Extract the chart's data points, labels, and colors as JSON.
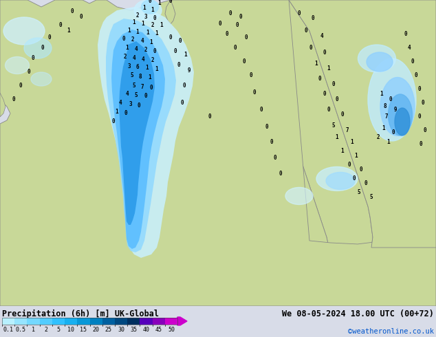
{
  "title_left": "Precipitation (6h) [m] UK-Global",
  "title_right": "We 08-05-2024 18.00 UTC (00+72)",
  "credit": "©weatheronline.co.uk",
  "colorbar_labels": [
    "0.1",
    "0.5",
    "1",
    "2",
    "5",
    "10",
    "15",
    "20",
    "25",
    "30",
    "35",
    "40",
    "45",
    "50"
  ],
  "ocean_color": "#d0d4dc",
  "land_color": "#c8d898",
  "background_color": "#d0d4dc",
  "bottom_bg": "#d8dce8",
  "figure_bg": "#d8dce8",
  "cbar_colors": [
    "#b8f0ff",
    "#96e4ff",
    "#74d8ff",
    "#52ccff",
    "#30c0ff",
    "#18b0f0",
    "#0898d8",
    "#0080c0",
    "#0060a0",
    "#004880",
    "#003060",
    "#5500bb",
    "#8800bb",
    "#cc00cc"
  ],
  "precip_norway_outer": "#c0eeff",
  "precip_norway_mid1": "#90d8ff",
  "precip_norway_mid2": "#60c0ff",
  "precip_norway_core1": "#40a8f0",
  "precip_norway_core2": "#2090e0",
  "precip_east_outer": "#c0eeff",
  "precip_east_mid": "#90d8ff",
  "precip_east_core": "#60a8f0",
  "precip_south_outer": "#c0eeff",
  "precip_south_mid": "#90d8ff",
  "precip_atlantic_light": "#d0f4ff"
}
